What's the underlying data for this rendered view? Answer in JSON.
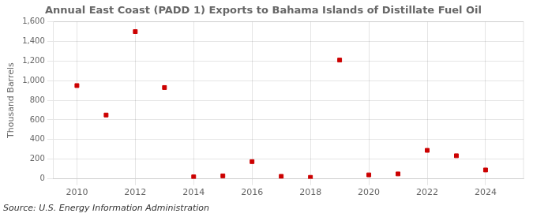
{
  "chart_data": {
    "type": "scatter",
    "title": "Annual East Coast (PADD 1) Exports to Bahama Islands of Distillate Fuel Oil",
    "ylabel": "Thousand Barrels",
    "annotation": "Source: U.S. Energy Information Administration",
    "x": [
      2010,
      2011,
      2012,
      2013,
      2014,
      2015,
      2016,
      2017,
      2018,
      2019,
      2020,
      2021,
      2022,
      2023,
      2024
    ],
    "values": [
      950,
      650,
      1500,
      930,
      20,
      30,
      175,
      25,
      15,
      1210,
      40,
      50,
      290,
      235,
      90
    ],
    "color": "#cc0000",
    "marker": "square",
    "xlim": [
      2009.2,
      2025.3
    ],
    "xticks": [
      2010,
      2012,
      2014,
      2016,
      2018,
      2020,
      2022,
      2024
    ],
    "ylim": [
      0,
      1600
    ],
    "yticks": [
      0,
      200,
      400,
      600,
      800,
      {
        "value": 1000,
        "label": "1,000"
      },
      {
        "value": 1200,
        "label": "1,200"
      },
      {
        "value": 1400,
        "label": "1,400"
      },
      {
        "value": 1600,
        "label": "1,600"
      }
    ],
    "grid": true
  }
}
